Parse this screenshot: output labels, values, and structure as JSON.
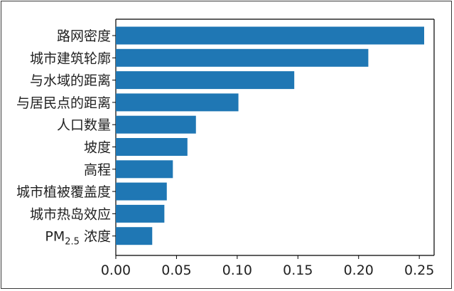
{
  "chart_data": {
    "type": "bar",
    "orientation": "horizontal",
    "categories": [
      "路网密度",
      "城市建筑轮廓",
      "与水域的距离",
      "与居民点的距离",
      "人口数量",
      "坡度",
      "高程",
      "城市植被覆盖度",
      "城市热岛效应",
      "PM2.5 浓度"
    ],
    "pm_label": {
      "main": "PM",
      "sub": "2.5",
      "rest": " 浓度"
    },
    "values": [
      0.254,
      0.208,
      0.147,
      0.101,
      0.066,
      0.059,
      0.047,
      0.042,
      0.04,
      0.03
    ],
    "xlim": [
      0,
      0.26
    ],
    "xticks": [
      0.0,
      0.05,
      0.1,
      0.15,
      0.2,
      0.25
    ],
    "xtick_labels": [
      "0.00",
      "0.05",
      "0.10",
      "0.15",
      "0.20",
      "0.25"
    ],
    "title": "",
    "xlabel": "",
    "ylabel": "",
    "grid": false,
    "bar_color": "#1f77b4"
  }
}
